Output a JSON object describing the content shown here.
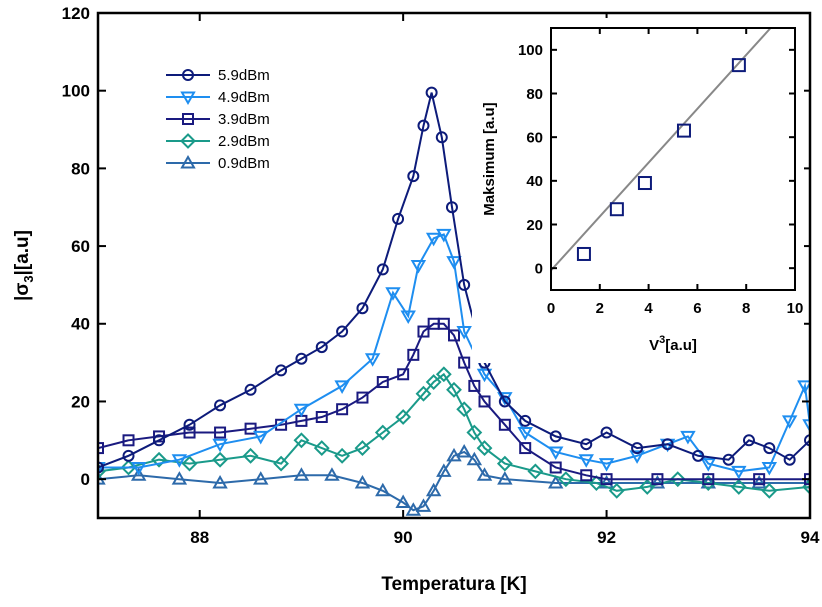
{
  "chart_data": [
    {
      "type": "line",
      "title": "",
      "xlabel": "Temperatura [K]",
      "ylabel_parts": [
        "|σ",
        "3",
        "|[a.u]"
      ],
      "xlim": [
        87.0,
        94.0
      ],
      "ylim": [
        -10,
        120
      ],
      "xticks": [
        88,
        90,
        92,
        94
      ],
      "yticks": [
        0,
        20,
        40,
        60,
        80,
        100,
        120
      ],
      "grid": false,
      "legend_position": "top-left",
      "series": [
        {
          "name": "5.9dBm",
          "color": "#0d1b7a",
          "marker": "circle",
          "x": [
            87.0,
            87.3,
            87.6,
            87.9,
            88.2,
            88.5,
            88.8,
            89.0,
            89.2,
            89.4,
            89.6,
            89.8,
            89.95,
            90.1,
            90.2,
            90.28,
            90.38,
            90.48,
            90.6,
            90.8,
            91.0,
            91.2,
            91.5,
            91.8,
            92.0,
            92.3,
            92.6,
            92.9,
            93.2,
            93.4,
            93.6,
            93.8,
            94.0
          ],
          "y": [
            3,
            6,
            10,
            14,
            19,
            23,
            28,
            31,
            34,
            38,
            44,
            54,
            67,
            78,
            91,
            99.5,
            88,
            70,
            50,
            30,
            20,
            15,
            11,
            9,
            12,
            8,
            9,
            6,
            5,
            10,
            8,
            5,
            10
          ]
        },
        {
          "name": "4.9dBm",
          "color": "#1e8ef0",
          "marker": "triangle-down",
          "x": [
            87.0,
            87.4,
            87.8,
            88.2,
            88.6,
            89.0,
            89.4,
            89.7,
            89.9,
            90.05,
            90.15,
            90.3,
            90.4,
            90.5,
            90.6,
            90.8,
            91.0,
            91.2,
            91.5,
            91.8,
            92.0,
            92.3,
            92.6,
            92.8,
            93.0,
            93.3,
            93.6,
            93.8,
            93.95,
            94.0
          ],
          "y": [
            3,
            3,
            5,
            9,
            11,
            18,
            24,
            31,
            48,
            42,
            55,
            62,
            63,
            56,
            38,
            27,
            21,
            12,
            7,
            5,
            4,
            6,
            9,
            11,
            4,
            2,
            3,
            15,
            24,
            14
          ]
        },
        {
          "name": "3.9dBm",
          "color": "#1a1a80",
          "marker": "square",
          "x": [
            87.0,
            87.3,
            87.6,
            87.9,
            88.2,
            88.5,
            88.8,
            89.0,
            89.2,
            89.4,
            89.6,
            89.8,
            90.0,
            90.1,
            90.2,
            90.3,
            90.4,
            90.5,
            90.6,
            90.7,
            90.8,
            91.0,
            91.2,
            91.5,
            91.8,
            92.0,
            92.5,
            93.0,
            93.5,
            94.0
          ],
          "y": [
            8,
            10,
            11,
            12,
            12,
            13,
            14,
            15,
            16,
            18,
            21,
            25,
            27,
            32,
            38,
            40,
            40,
            37,
            30,
            24,
            20,
            14,
            8,
            3,
            1,
            0,
            0,
            0,
            0,
            0
          ]
        },
        {
          "name": "2.9dBm",
          "color": "#1a9a8a",
          "marker": "diamond",
          "x": [
            87.0,
            87.3,
            87.6,
            87.9,
            88.2,
            88.5,
            88.8,
            89.0,
            89.2,
            89.4,
            89.6,
            89.8,
            90.0,
            90.2,
            90.3,
            90.4,
            90.5,
            90.6,
            90.7,
            90.8,
            91.0,
            91.3,
            91.6,
            91.9,
            92.1,
            92.4,
            92.7,
            93.0,
            93.3,
            93.6,
            94.0
          ],
          "y": [
            2,
            3,
            5,
            4,
            5,
            6,
            4,
            10,
            8,
            6,
            8,
            12,
            16,
            22,
            25,
            27,
            23,
            18,
            12,
            8,
            4,
            2,
            0,
            -1,
            -3,
            -2,
            0,
            -1,
            -2,
            -3,
            -2
          ]
        },
        {
          "name": "0.9dBm",
          "color": "#2d6aaa",
          "marker": "triangle-up",
          "x": [
            87.0,
            87.4,
            87.8,
            88.2,
            88.6,
            89.0,
            89.3,
            89.6,
            89.8,
            90.0,
            90.1,
            90.2,
            90.3,
            90.4,
            90.5,
            90.6,
            90.7,
            90.8,
            91.0,
            91.5,
            92.0,
            92.5,
            93.0,
            93.5,
            94.0
          ],
          "y": [
            0,
            1,
            0,
            -1,
            0,
            1,
            1,
            -1,
            -3,
            -6,
            -8,
            -7,
            -3,
            2,
            6,
            7,
            5,
            1,
            0,
            -1,
            -1,
            -1,
            -1,
            -1,
            -1
          ]
        }
      ]
    },
    {
      "type": "scatter",
      "title": "",
      "xlabel_parts": [
        "V",
        "3",
        "[a.u]"
      ],
      "ylabel": "Maksimum [a.u]",
      "xlim": [
        0,
        10
      ],
      "ylim": [
        -10,
        110
      ],
      "xticks": [
        0,
        2,
        4,
        6,
        8,
        10
      ],
      "yticks": [
        0,
        20,
        40,
        60,
        80,
        100
      ],
      "grid": false,
      "series": [
        {
          "name": "",
          "color": "#0d1b7a",
          "marker": "square",
          "x": [
            1.35,
            2.7,
            3.85,
            5.45,
            7.7
          ],
          "y": [
            6.5,
            27,
            39,
            63,
            93
          ]
        }
      ],
      "fit_line": {
        "color": "#888888",
        "x": [
          0,
          9
        ],
        "y": [
          -1,
          110
        ]
      }
    }
  ]
}
